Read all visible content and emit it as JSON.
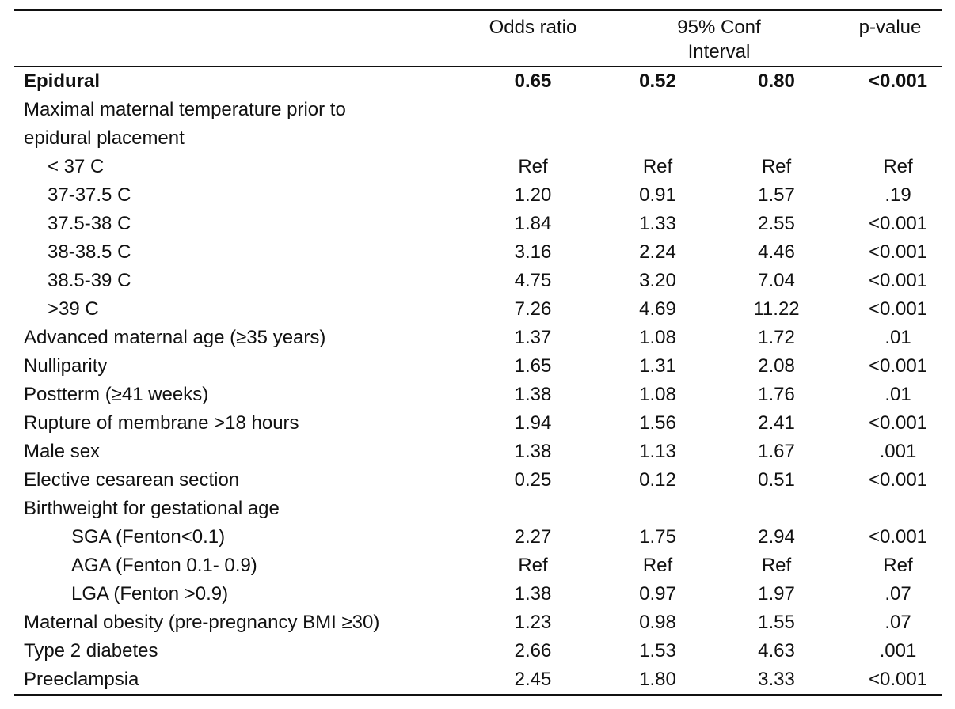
{
  "table": {
    "headers": {
      "odds_ratio": "Odds ratio",
      "ci_line1": "95% Conf",
      "ci_line2": "Interval",
      "p_value": "p-value"
    },
    "rows": [
      {
        "label": "Epidural",
        "or": "0.65",
        "lo": "0.52",
        "hi": "0.80",
        "p": "<0.001",
        "bold": true,
        "indent": 0
      },
      {
        "label": "Maximal maternal temperature prior to",
        "or": "",
        "lo": "",
        "hi": "",
        "p": "",
        "indent": 0
      },
      {
        "label": "epidural placement",
        "or": "",
        "lo": "",
        "hi": "",
        "p": "",
        "indent": 0
      },
      {
        "label": "< 37 C",
        "or": "Ref",
        "lo": "Ref",
        "hi": "Ref",
        "p": "Ref",
        "indent": 1
      },
      {
        "label": "37-37.5 C",
        "or": "1.20",
        "lo": "0.91",
        "hi": "1.57",
        "p": ".19",
        "indent": 1
      },
      {
        "label": "37.5-38 C",
        "or": "1.84",
        "lo": "1.33",
        "hi": "2.55",
        "p": "<0.001",
        "indent": 1
      },
      {
        "label": "38-38.5 C",
        "or": "3.16",
        "lo": "2.24",
        "hi": "4.46",
        "p": "<0.001",
        "indent": 1
      },
      {
        "label": "38.5-39 C",
        "or": "4.75",
        "lo": "3.20",
        "hi": "7.04",
        "p": "<0.001",
        "indent": 1
      },
      {
        "label": ">39 C",
        "or": "7.26",
        "lo": "4.69",
        "hi": "11.22",
        "p": "<0.001",
        "indent": 1
      },
      {
        "label": "Advanced maternal age (≥35 years)",
        "or": "1.37",
        "lo": "1.08",
        "hi": "1.72",
        "p": ".01",
        "indent": 0
      },
      {
        "label": "Nulliparity",
        "or": "1.65",
        "lo": "1.31",
        "hi": "2.08",
        "p": "<0.001",
        "indent": 0
      },
      {
        "label": "Postterm (≥41 weeks)",
        "or": "1.38",
        "lo": "1.08",
        "hi": "1.76",
        "p": ".01",
        "indent": 0
      },
      {
        "label": "Rupture of membrane >18 hours",
        "or": "1.94",
        "lo": "1.56",
        "hi": "2.41",
        "p": "<0.001",
        "indent": 0
      },
      {
        "label": "Male sex",
        "or": "1.38",
        "lo": "1.13",
        "hi": "1.67",
        "p": ".001",
        "indent": 0
      },
      {
        "label": "Elective cesarean section",
        "or": "0.25",
        "lo": "0.12",
        "hi": "0.51",
        "p": "<0.001",
        "indent": 0
      },
      {
        "label": "Birthweight for gestational age",
        "or": "",
        "lo": "",
        "hi": "",
        "p": "",
        "indent": 0
      },
      {
        "label": "SGA (Fenton<0.1)",
        "or": "2.27",
        "lo": "1.75",
        "hi": "2.94",
        "p": "<0.001",
        "indent": 2
      },
      {
        "label": "AGA (Fenton 0.1- 0.9)",
        "or": "Ref",
        "lo": "Ref",
        "hi": "Ref",
        "p": "Ref",
        "indent": 2
      },
      {
        "label": "LGA (Fenton >0.9)",
        "or": "1.38",
        "lo": "0.97",
        "hi": "1.97",
        "p": ".07",
        "indent": 2
      },
      {
        "label": "Maternal obesity (pre-pregnancy BMI ≥30)",
        "or": "1.23",
        "lo": "0.98",
        "hi": "1.55",
        "p": ".07",
        "indent": 0
      },
      {
        "label": "Type 2 diabetes",
        "or": "2.66",
        "lo": "1.53",
        "hi": "4.63",
        "p": ".001",
        "indent": 0
      },
      {
        "label": "Preeclampsia",
        "or": "2.45",
        "lo": "1.80",
        "hi": "3.33",
        "p": "<0.001",
        "indent": 0
      }
    ]
  }
}
